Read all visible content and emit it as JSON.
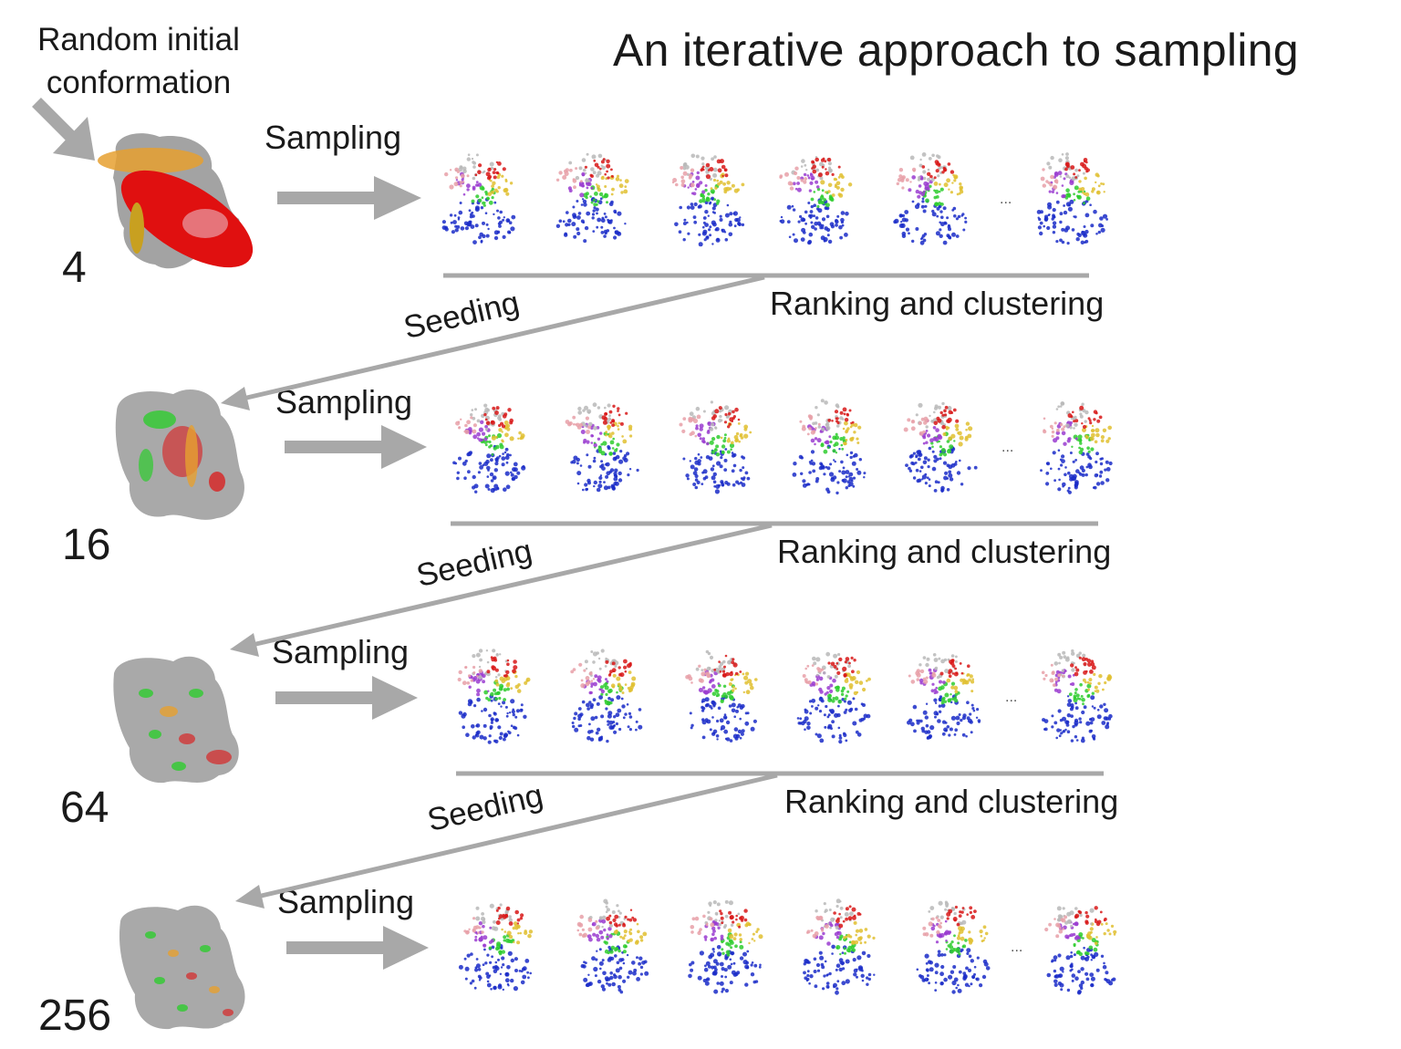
{
  "title": "An iterative approach to sampling",
  "intro_label": "Random initial\nconformation",
  "labels": {
    "sampling": "Sampling",
    "ranking": "Ranking and clustering",
    "seeding": "Seeding",
    "ellipsis": "..."
  },
  "rows": [
    {
      "count": "4"
    },
    {
      "count": "16"
    },
    {
      "count": "64"
    },
    {
      "count": "256"
    }
  ],
  "colors": {
    "arrow": "#a8a8a8",
    "blue": "#1a2cc8",
    "green": "#2ecc2e",
    "yellow": "#e0c030",
    "purple": "#9a3cd0",
    "red": "#d81818",
    "pink": "#e8a0a8",
    "grey": "#b8b8b8",
    "orange": "#e6a030",
    "map_grey": "#8c8c8c",
    "map_red": "#e01010"
  }
}
